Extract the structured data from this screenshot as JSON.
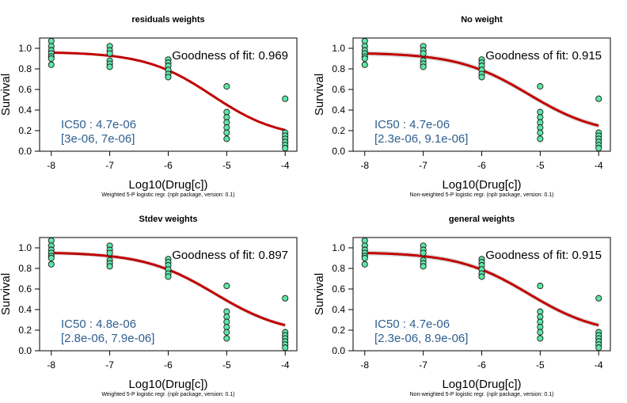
{
  "colors": {
    "curve": "#c00000",
    "band": "#d9d9d9",
    "points_fill": "#5ee6a8",
    "points_stroke": "#1a1a1a",
    "ic50_text": "#2f5f8f"
  },
  "chart_data": [
    {
      "type": "scatter",
      "title": "residuals weights",
      "xlabel": "Log10(Drug[c])",
      "ylabel": "Survival",
      "caption": "Weighted 5-P logistic regr. (nplr package, version: 0.1)",
      "goodness": "Goodness of fit: 0.969",
      "ic50": "IC50 : 4.7e-06",
      "ci": "[3e-06, 7e-06]",
      "xlim": [
        -8.2,
        -3.8
      ],
      "ylim": [
        0,
        1.1
      ],
      "xticks": [
        -8,
        -7,
        -6,
        -5,
        -4
      ],
      "xtick_labels": [
        "-8",
        "-7",
        "-6",
        "-5",
        "-4"
      ],
      "yticks": [
        0,
        0.2,
        0.4,
        0.6,
        0.8,
        1.0
      ],
      "ytick_labels": [
        "0.0",
        "0.2",
        "0.4",
        "0.6",
        "0.8",
        "1.0"
      ],
      "points": [
        [
          -8,
          1.07
        ],
        [
          -8,
          1.02
        ],
        [
          -8,
          0.98
        ],
        [
          -8,
          0.95
        ],
        [
          -8,
          0.92
        ],
        [
          -8,
          0.9
        ],
        [
          -8,
          0.84
        ],
        [
          -7,
          1.02
        ],
        [
          -7,
          0.98
        ],
        [
          -7,
          0.95
        ],
        [
          -7,
          0.88
        ],
        [
          -7,
          0.85
        ],
        [
          -7,
          0.82
        ],
        [
          -6,
          0.89
        ],
        [
          -6,
          0.86
        ],
        [
          -6,
          0.83
        ],
        [
          -6,
          0.79
        ],
        [
          -6,
          0.75
        ],
        [
          -6,
          0.72
        ],
        [
          -5,
          0.63
        ],
        [
          -5,
          0.38
        ],
        [
          -5,
          0.33
        ],
        [
          -5,
          0.28
        ],
        [
          -5,
          0.23
        ],
        [
          -5,
          0.18
        ],
        [
          -5,
          0.12
        ],
        [
          -4,
          0.51
        ],
        [
          -4,
          0.18
        ],
        [
          -4,
          0.15
        ],
        [
          -4,
          0.12
        ],
        [
          -4,
          0.09
        ],
        [
          -4,
          0.06
        ],
        [
          -4,
          0.03
        ]
      ],
      "fit": {
        "bottom": 0.12,
        "top": 0.965,
        "xmid": -5.25,
        "slope": 1.75
      },
      "band_width": 0.005
    },
    {
      "type": "scatter",
      "title": "No weight",
      "xlabel": "Log10(Drug[c])",
      "ylabel": "Survival",
      "caption": "Non-weighted 5-P logistic regr. (nplr package, version: 0.1)",
      "goodness": "Goodness of fit: 0.915",
      "ic50": "IC50 : 4.7e-06",
      "ci": "[2.3e-06, 9.1e-06]",
      "xlim": [
        -8.2,
        -3.8
      ],
      "ylim": [
        0,
        1.1
      ],
      "xticks": [
        -8,
        -7,
        -6,
        -5,
        -4
      ],
      "xtick_labels": [
        "-8",
        "-7",
        "-6",
        "-5",
        "-4"
      ],
      "yticks": [
        0,
        0.2,
        0.4,
        0.6,
        0.8,
        1.0
      ],
      "ytick_labels": [
        "0.0",
        "0.2",
        "0.4",
        "0.6",
        "0.8",
        "1.0"
      ],
      "points": [
        [
          -8,
          1.07
        ],
        [
          -8,
          1.02
        ],
        [
          -8,
          0.98
        ],
        [
          -8,
          0.95
        ],
        [
          -8,
          0.92
        ],
        [
          -8,
          0.9
        ],
        [
          -8,
          0.84
        ],
        [
          -7,
          1.02
        ],
        [
          -7,
          0.98
        ],
        [
          -7,
          0.95
        ],
        [
          -7,
          0.88
        ],
        [
          -7,
          0.85
        ],
        [
          -7,
          0.82
        ],
        [
          -6,
          0.89
        ],
        [
          -6,
          0.86
        ],
        [
          -6,
          0.83
        ],
        [
          -6,
          0.79
        ],
        [
          -6,
          0.75
        ],
        [
          -6,
          0.72
        ],
        [
          -5,
          0.63
        ],
        [
          -5,
          0.38
        ],
        [
          -5,
          0.33
        ],
        [
          -5,
          0.28
        ],
        [
          -5,
          0.23
        ],
        [
          -5,
          0.18
        ],
        [
          -5,
          0.12
        ],
        [
          -4,
          0.51
        ],
        [
          -4,
          0.18
        ],
        [
          -4,
          0.15
        ],
        [
          -4,
          0.12
        ],
        [
          -4,
          0.09
        ],
        [
          -4,
          0.06
        ],
        [
          -4,
          0.03
        ]
      ],
      "fit": {
        "bottom": 0.15,
        "top": 0.958,
        "xmid": -5.2,
        "slope": 1.65
      },
      "band_width": 0.025
    },
    {
      "type": "scatter",
      "title": "Stdev weights",
      "xlabel": "Log10(Drug[c])",
      "ylabel": "Survival",
      "caption": "Weighted 5-P logistic regr. (nplr package, version: 0.1)",
      "goodness": "Goodness of fit: 0.897",
      "ic50": "IC50 : 4.8e-06",
      "ci": "[2.8e-06, 7.9e-06]",
      "xlim": [
        -8.2,
        -3.8
      ],
      "ylim": [
        0,
        1.1
      ],
      "xticks": [
        -8,
        -7,
        -6,
        -5,
        -4
      ],
      "xtick_labels": [
        "-8",
        "-7",
        "-6",
        "-5",
        "-4"
      ],
      "yticks": [
        0,
        0.2,
        0.4,
        0.6,
        0.8,
        1.0
      ],
      "ytick_labels": [
        "0.0",
        "0.2",
        "0.4",
        "0.6",
        "0.8",
        "1.0"
      ],
      "points": [
        [
          -8,
          1.07
        ],
        [
          -8,
          1.02
        ],
        [
          -8,
          0.98
        ],
        [
          -8,
          0.95
        ],
        [
          -8,
          0.92
        ],
        [
          -8,
          0.9
        ],
        [
          -8,
          0.84
        ],
        [
          -7,
          1.02
        ],
        [
          -7,
          0.98
        ],
        [
          -7,
          0.95
        ],
        [
          -7,
          0.88
        ],
        [
          -7,
          0.85
        ],
        [
          -7,
          0.82
        ],
        [
          -6,
          0.89
        ],
        [
          -6,
          0.86
        ],
        [
          -6,
          0.83
        ],
        [
          -6,
          0.79
        ],
        [
          -6,
          0.75
        ],
        [
          -6,
          0.72
        ],
        [
          -5,
          0.63
        ],
        [
          -5,
          0.38
        ],
        [
          -5,
          0.33
        ],
        [
          -5,
          0.28
        ],
        [
          -5,
          0.23
        ],
        [
          -5,
          0.18
        ],
        [
          -5,
          0.12
        ],
        [
          -4,
          0.51
        ],
        [
          -4,
          0.18
        ],
        [
          -4,
          0.15
        ],
        [
          -4,
          0.12
        ],
        [
          -4,
          0.09
        ],
        [
          -4,
          0.06
        ],
        [
          -4,
          0.03
        ]
      ],
      "fit": {
        "bottom": 0.15,
        "top": 0.958,
        "xmid": -5.2,
        "slope": 1.65
      },
      "band_width": 0.02
    },
    {
      "type": "scatter",
      "title": "general weights",
      "xlabel": "Log10(Drug[c])",
      "ylabel": "Survival",
      "caption": "Non-weighted 5-P logistic regr. (nplr package, version: 0.1)",
      "goodness": "Goodness of fit: 0.915",
      "ic50": "IC50 : 4.7e-06",
      "ci": "[2.3e-06, 8.9e-06]",
      "xlim": [
        -8.2,
        -3.8
      ],
      "ylim": [
        0,
        1.1
      ],
      "xticks": [
        -8,
        -7,
        -6,
        -5,
        -4
      ],
      "xtick_labels": [
        "-8",
        "-7",
        "-6",
        "-5",
        "-4"
      ],
      "yticks": [
        0,
        0.2,
        0.4,
        0.6,
        0.8,
        1.0
      ],
      "ytick_labels": [
        "0.0",
        "0.2",
        "0.4",
        "0.6",
        "0.8",
        "1.0"
      ],
      "points": [
        [
          -8,
          1.07
        ],
        [
          -8,
          1.02
        ],
        [
          -8,
          0.98
        ],
        [
          -8,
          0.95
        ],
        [
          -8,
          0.92
        ],
        [
          -8,
          0.9
        ],
        [
          -8,
          0.84
        ],
        [
          -7,
          1.02
        ],
        [
          -7,
          0.98
        ],
        [
          -7,
          0.95
        ],
        [
          -7,
          0.88
        ],
        [
          -7,
          0.85
        ],
        [
          -7,
          0.82
        ],
        [
          -6,
          0.89
        ],
        [
          -6,
          0.86
        ],
        [
          -6,
          0.83
        ],
        [
          -6,
          0.79
        ],
        [
          -6,
          0.75
        ],
        [
          -6,
          0.72
        ],
        [
          -5,
          0.63
        ],
        [
          -5,
          0.38
        ],
        [
          -5,
          0.33
        ],
        [
          -5,
          0.28
        ],
        [
          -5,
          0.23
        ],
        [
          -5,
          0.18
        ],
        [
          -5,
          0.12
        ],
        [
          -4,
          0.51
        ],
        [
          -4,
          0.18
        ],
        [
          -4,
          0.15
        ],
        [
          -4,
          0.12
        ],
        [
          -4,
          0.09
        ],
        [
          -4,
          0.06
        ],
        [
          -4,
          0.03
        ]
      ],
      "fit": {
        "bottom": 0.15,
        "top": 0.958,
        "xmid": -5.2,
        "slope": 1.65
      },
      "band_width": 0.025
    }
  ]
}
